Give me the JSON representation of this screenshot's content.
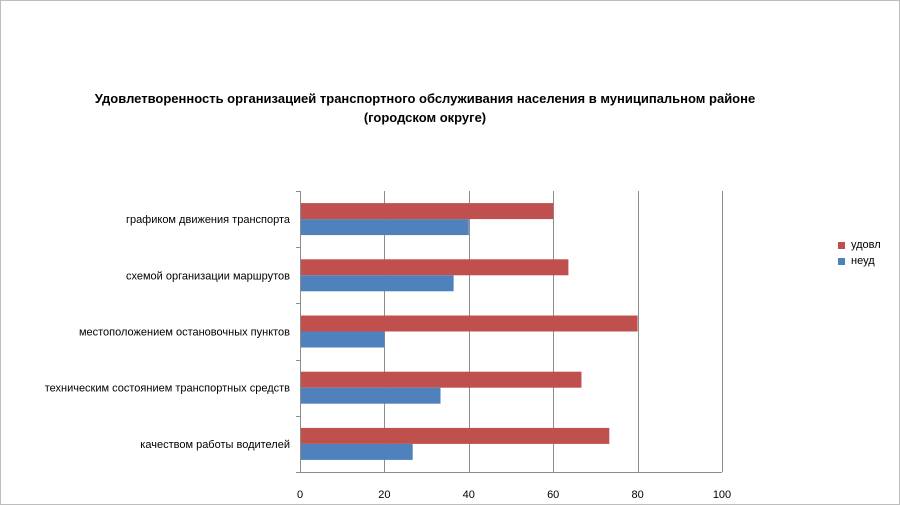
{
  "chart_data": {
    "type": "bar",
    "orientation": "horizontal",
    "title_lines": [
      "Удовлетворенность организацией транспортного обслуживания населения в муниципальном районе",
      "(городском округе)"
    ],
    "categories": [
      "графиком движения транспорта",
      "схемой организации маршрутов",
      "местоположением остановочных пунктов",
      "техническим состоянием транспортных средств",
      "качеством работы водителей"
    ],
    "series": [
      {
        "name": "удовл",
        "color": "#C0504D",
        "values": [
          60,
          63.6,
          80,
          66.7,
          73.3
        ]
      },
      {
        "name": "неуд",
        "color": "#4F81BD",
        "values": [
          40,
          36.4,
          20,
          33.3,
          26.7
        ]
      }
    ],
    "xlim": [
      0,
      100
    ],
    "xticks": [
      "0",
      "20",
      "40",
      "60",
      "80",
      "100"
    ],
    "grid": true,
    "legend_position": "right"
  }
}
